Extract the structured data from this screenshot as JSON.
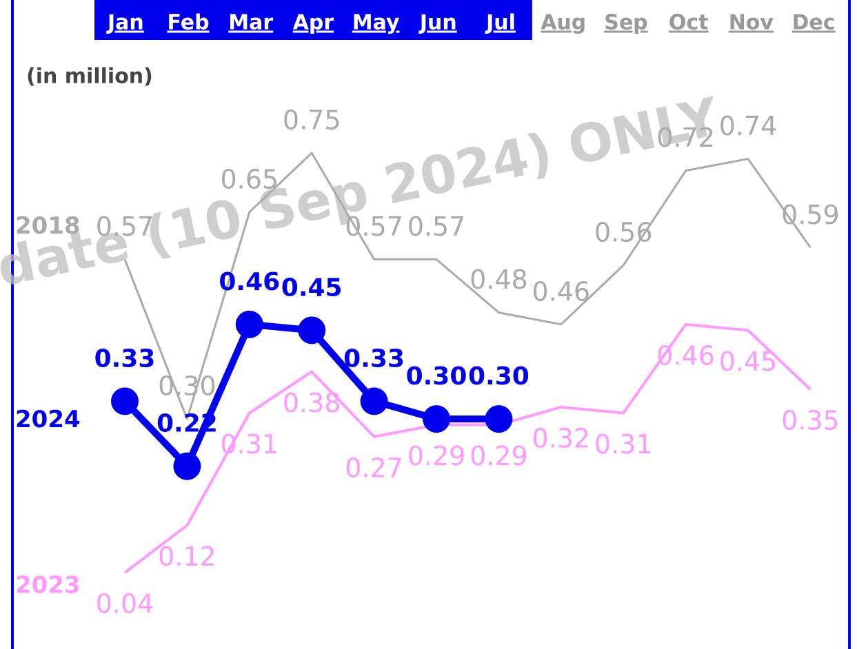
{
  "chart_data": {
    "type": "line",
    "unit_note": "(in million)",
    "watermark": "date (10 Sep 2024) ONLY",
    "categories": [
      "Jan",
      "Feb",
      "Mar",
      "Apr",
      "May",
      "Jun",
      "Jul",
      "Aug",
      "Sep",
      "Oct",
      "Nov",
      "Dec"
    ],
    "series": [
      {
        "name": "2018",
        "color": "#aaaaaa",
        "values": [
          0.57,
          0.3,
          0.65,
          0.75,
          0.57,
          0.57,
          0.48,
          0.46,
          0.56,
          0.72,
          0.74,
          0.59
        ],
        "value_labels": [
          "0.57",
          "0.30",
          "0.65",
          "0.75",
          "0.57",
          "0.57",
          "0.48",
          "0.46",
          "0.56",
          "0.72",
          "0.74",
          "0.59"
        ]
      },
      {
        "name": "2023",
        "color": "#ff99ff",
        "values": [
          0.04,
          0.12,
          0.31,
          0.38,
          0.27,
          0.29,
          0.29,
          0.32,
          0.31,
          0.46,
          0.45,
          0.35
        ],
        "value_labels": [
          "0.04",
          "0.12",
          "0.31",
          "0.38",
          "0.27",
          "0.29",
          "0.29",
          "0.32",
          "0.31",
          "0.46",
          "0.45",
          "0.35"
        ]
      },
      {
        "name": "2024",
        "color": "#0000ee",
        "values": [
          0.33,
          0.22,
          0.46,
          0.45,
          0.33,
          0.3,
          0.3,
          null,
          null,
          null,
          null,
          null
        ],
        "value_labels": [
          "0.33",
          "0.22",
          "0.46",
          "0.45",
          "0.33",
          "0.30",
          "0.30",
          null,
          null,
          null,
          null,
          null
        ]
      }
    ]
  }
}
